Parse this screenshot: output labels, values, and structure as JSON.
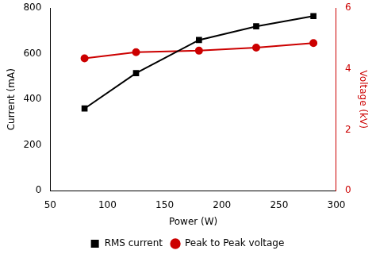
{
  "chart_data": {
    "type": "line",
    "xlabel": "Power (W)",
    "ylabel": "Current (mA)",
    "y2label": "Voltage (kV)",
    "x": [
      80,
      125,
      180,
      230,
      280
    ],
    "series": [
      {
        "name": "RMS current",
        "color": "#000000",
        "marker": "square",
        "values": [
          360,
          515,
          660,
          720,
          765
        ]
      },
      {
        "name": "Peak to Peak voltage",
        "color": "#cc0000",
        "marker": "circle",
        "axis": "y2",
        "values": [
          4.35,
          4.55,
          4.6,
          4.7,
          4.85
        ]
      }
    ],
    "xlim": [
      50,
      300
    ],
    "xticks": [
      50,
      100,
      150,
      200,
      250,
      300
    ],
    "ylim": [
      0,
      800
    ],
    "yticks": [
      0,
      200,
      400,
      600,
      800
    ],
    "y2lim": [
      0,
      6
    ],
    "y2ticks": [
      0,
      2,
      4,
      6
    ],
    "grid": false,
    "legend": "bottom"
  }
}
